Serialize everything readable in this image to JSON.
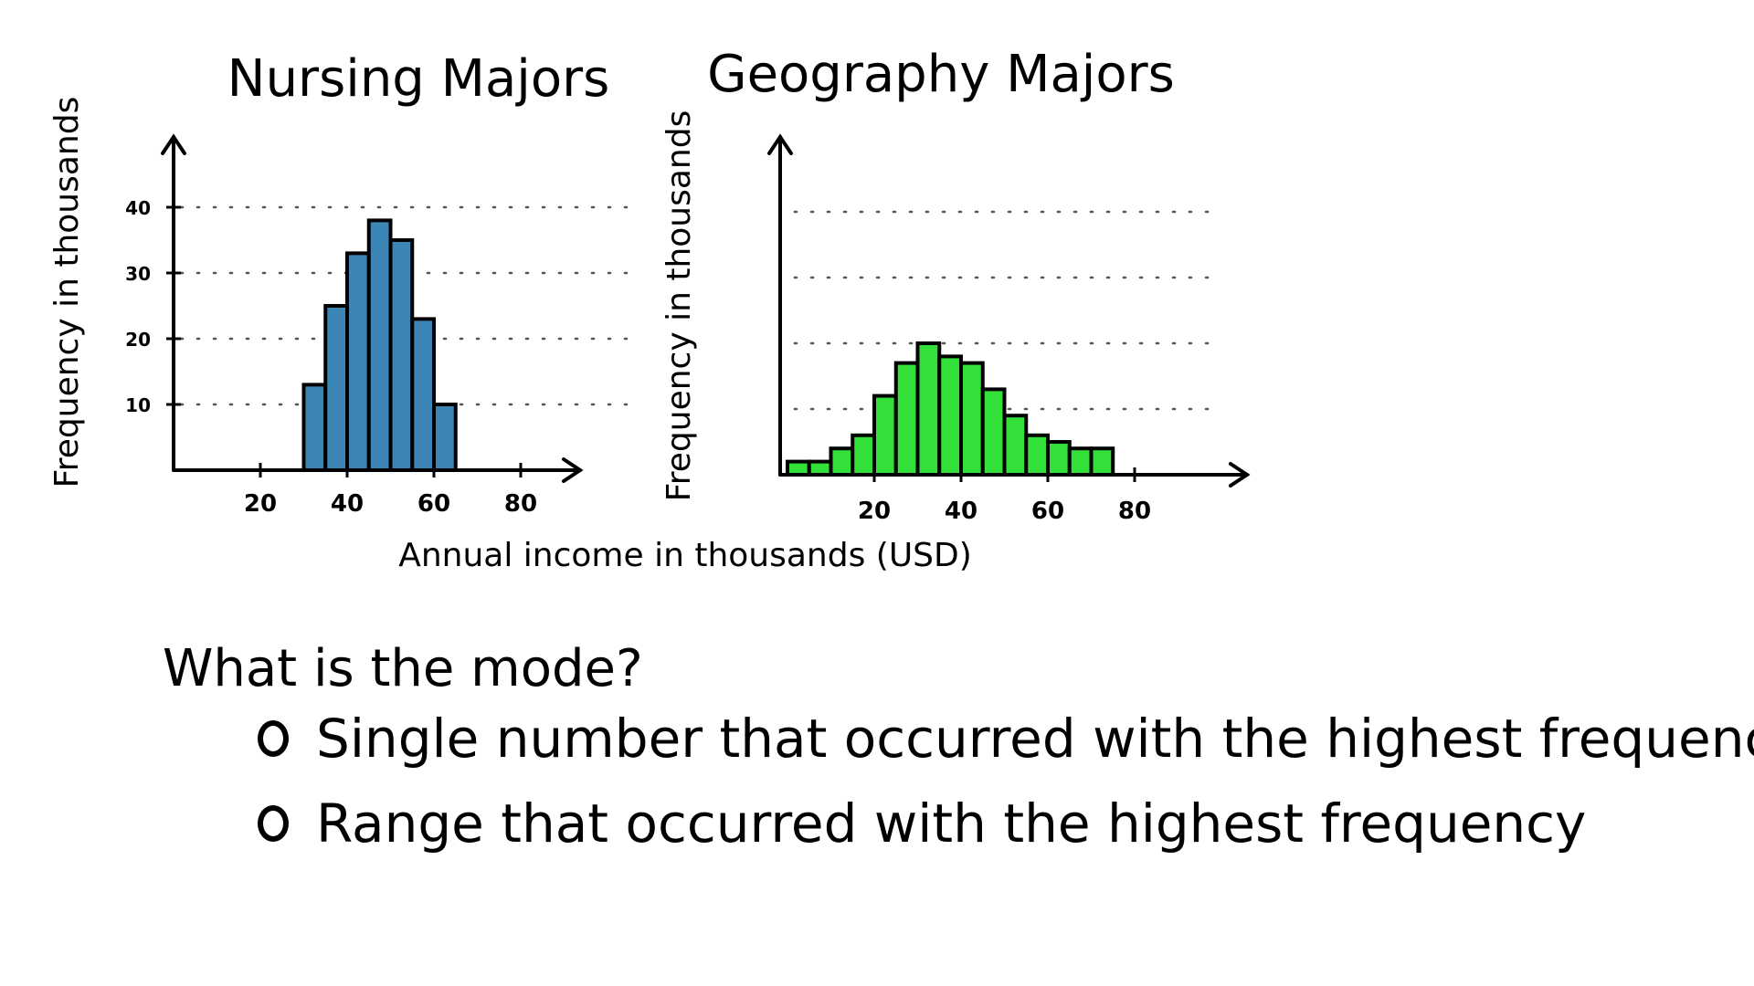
{
  "chart_data": [
    {
      "type": "bar",
      "title": "Nursing Majors",
      "ylabel": "Frequency in thousands",
      "xlabel": "",
      "bin_width": 5,
      "bins": [
        {
          "x0": 30,
          "value": 13
        },
        {
          "x0": 35,
          "value": 25
        },
        {
          "x0": 40,
          "value": 33
        },
        {
          "x0": 45,
          "value": 38
        },
        {
          "x0": 50,
          "value": 35
        },
        {
          "x0": 55,
          "value": 23
        },
        {
          "x0": 60,
          "value": 10
        }
      ],
      "x_ticks": [
        "20",
        "40",
        "60",
        "80"
      ],
      "y_ticks": [
        "10",
        "20",
        "30",
        "40"
      ],
      "ylim": [
        0,
        45
      ],
      "grid": true,
      "color": "#3b86b4"
    },
    {
      "type": "bar",
      "title": "Geography Majors",
      "ylabel": "Frequency in thousands",
      "xlabel": "",
      "bin_width": 5,
      "bins": [
        {
          "x0": 0,
          "value": 2
        },
        {
          "x0": 5,
          "value": 2
        },
        {
          "x0": 10,
          "value": 4
        },
        {
          "x0": 15,
          "value": 6
        },
        {
          "x0": 20,
          "value": 12
        },
        {
          "x0": 25,
          "value": 17
        },
        {
          "x0": 30,
          "value": 20
        },
        {
          "x0": 35,
          "value": 18
        },
        {
          "x0": 40,
          "value": 17
        },
        {
          "x0": 45,
          "value": 13
        },
        {
          "x0": 50,
          "value": 9
        },
        {
          "x0": 55,
          "value": 6
        },
        {
          "x0": 60,
          "value": 5
        },
        {
          "x0": 65,
          "value": 4
        },
        {
          "x0": 70,
          "value": 4
        }
      ],
      "x_ticks": [
        "20",
        "40",
        "60",
        "80"
      ],
      "ylim": [
        0,
        45
      ],
      "grid": true,
      "color": "#33e03a"
    }
  ],
  "shared_xlabel": "Annual income in thousands (USD)",
  "question": {
    "prompt": "What is the mode?",
    "options": [
      "Single number that occurred with the highest frequency",
      "Range that occurred with the highest frequency"
    ]
  }
}
